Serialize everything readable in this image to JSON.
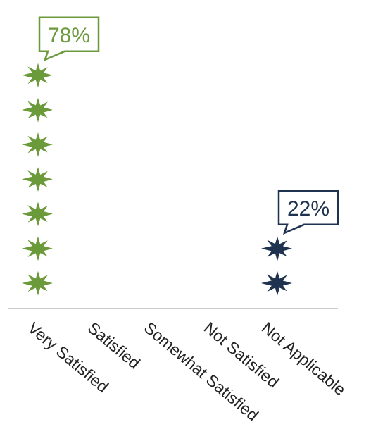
{
  "chart_data": {
    "type": "pictogram-column",
    "categories": [
      "Very Satisfied",
      "Satisfied",
      "Somewhat Satisfied",
      "Not Satisfied",
      "Not Applicable"
    ],
    "values": [
      78,
      0,
      0,
      0,
      22
    ],
    "data_labels": [
      "78%",
      "",
      "",
      "",
      "22%"
    ],
    "icon_counts": [
      7,
      0,
      0,
      0,
      2
    ],
    "unit": "%",
    "icon": "asterisk-star-icon",
    "colors": [
      "#6b9a3a",
      "#6b9a3a",
      "#6b9a3a",
      "#6b9a3a",
      "#1f3350"
    ],
    "title": "",
    "xlabel": "",
    "ylabel": "",
    "grid": false,
    "legend": "none"
  }
}
